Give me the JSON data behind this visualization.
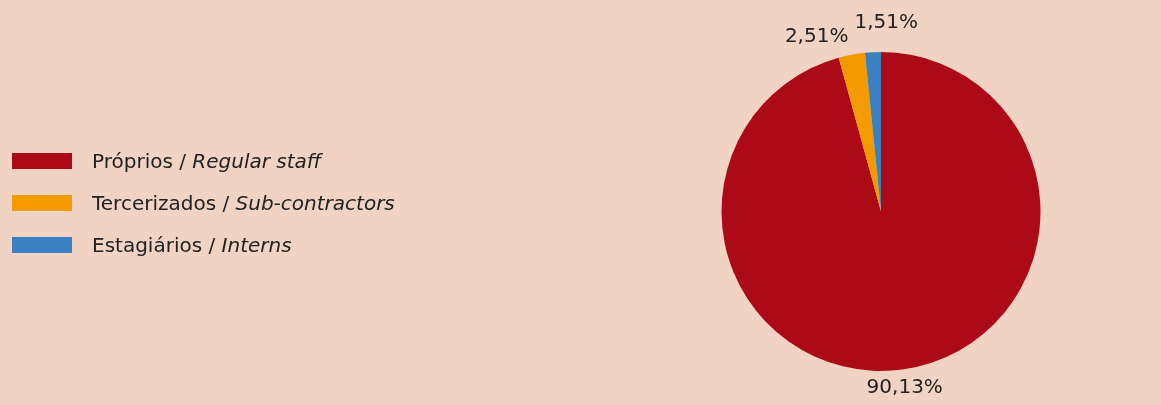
{
  "chart_data": {
    "type": "pie",
    "categories": [
      "Próprios / Regular staff",
      "Tercerizados / Sub-contractors",
      "Estagiários / Interns"
    ],
    "values": [
      90.13,
      2.51,
      1.51
    ],
    "colors": [
      "#ad0a18",
      "#f29a00",
      "#3b80c0"
    ],
    "value_labels": [
      "90,13%",
      "2,51%",
      "1,51%"
    ],
    "legend": "left"
  }
}
